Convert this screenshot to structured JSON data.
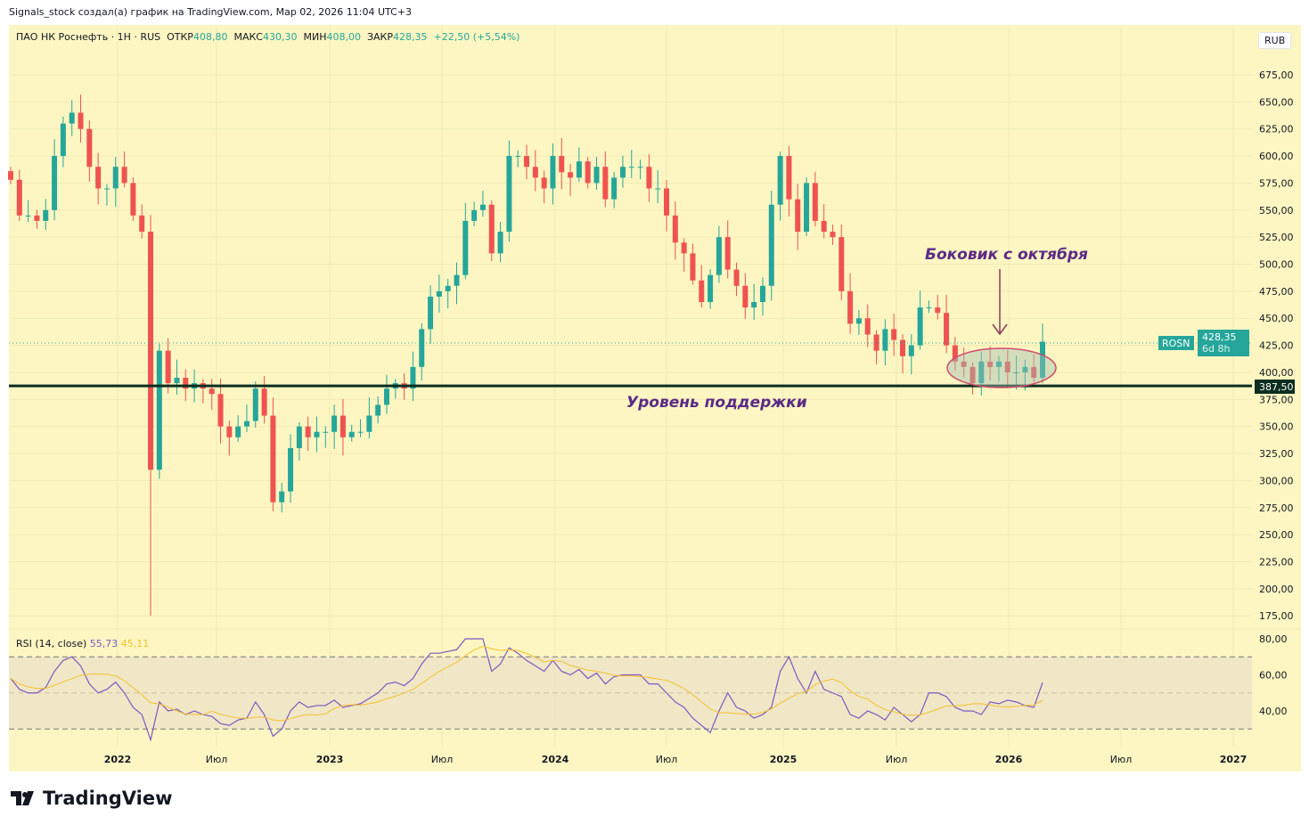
{
  "header": {
    "caption": "Signals_stock создал(а) график на TradingView.com, Мар 02, 2026 11:04 UTC+3"
  },
  "legend": {
    "symbol": "ПАО НК Роснефть · 1H · RUS",
    "open_label": "ОТКР",
    "open": "408,80",
    "high_label": "МАКС",
    "high": "430,30",
    "low_label": "МИН",
    "low": "408,00",
    "close_label": "ЗАКР",
    "close": "428,35",
    "change": "+22,50 (+5,54%)"
  },
  "currency_button": "RUB",
  "price_tag": {
    "ticker": "ROSN",
    "price": "428,35",
    "countdown": "6d 8h"
  },
  "support_tag": "387,50",
  "rsi_legend": {
    "title": "RSI (14, close)",
    "value": "55,73",
    "ma_value": "45,11"
  },
  "annotations": {
    "range_text": "Боковик с октября",
    "support_text": "Уровень поддержки"
  },
  "logo_text": "TradingView",
  "colors": {
    "up": "#26a69a",
    "down": "#ef5350",
    "bg": "#fdf6c2",
    "rsi": "#7e57c2",
    "rsi_ma": "#f5c02a",
    "annotation": "#5b2a86"
  },
  "chart_data": {
    "type": "candlestick",
    "price_ticks": [
      "675,00",
      "650,00",
      "625,00",
      "600,00",
      "575,00",
      "550,00",
      "525,00",
      "500,00",
      "475,00",
      "450,00",
      "425,00",
      "400,00",
      "375,00",
      "350,00",
      "325,00",
      "300,00",
      "275,00",
      "250,00",
      "225,00",
      "200,00",
      "175,00"
    ],
    "price_tick_values": [
      675,
      650,
      625,
      600,
      575,
      550,
      525,
      500,
      475,
      450,
      425,
      400,
      375,
      350,
      325,
      300,
      275,
      250,
      225,
      200,
      175
    ],
    "x_ticks": [
      "2022",
      "Июл",
      "2023",
      "Июл",
      "2024",
      "Июл",
      "2025",
      "Июл",
      "2026",
      "Июл",
      "2027"
    ],
    "support_level": 387.5,
    "last_price": 428.35,
    "extreme_low": {
      "index": 16,
      "value": 175
    },
    "closes": [
      578,
      545,
      545,
      540,
      550,
      600,
      630,
      640,
      625,
      590,
      570,
      570,
      590,
      575,
      545,
      530,
      310,
      420,
      390,
      395,
      385,
      390,
      385,
      380,
      350,
      340,
      350,
      355,
      385,
      360,
      280,
      290,
      330,
      350,
      340,
      345,
      345,
      360,
      340,
      345,
      345,
      360,
      370,
      385,
      390,
      385,
      405,
      440,
      470,
      475,
      480,
      490,
      540,
      550,
      555,
      510,
      530,
      600,
      600,
      590,
      580,
      570,
      600,
      585,
      580,
      595,
      575,
      590,
      560,
      580,
      590,
      590,
      590,
      570,
      570,
      545,
      520,
      510,
      485,
      465,
      490,
      525,
      495,
      480,
      460,
      465,
      480,
      555,
      600,
      560,
      530,
      575,
      540,
      530,
      525,
      475,
      445,
      450,
      435,
      420,
      440,
      430,
      415,
      425,
      460,
      460,
      455,
      425,
      410,
      405,
      390,
      410,
      405,
      410,
      400,
      400,
      405,
      395,
      428.35
    ],
    "rsi_ticks": [
      "80,00",
      "60,00",
      "40,00"
    ],
    "rsi_tick_values": [
      80,
      60,
      40
    ],
    "rsi_bands": [
      70,
      50,
      30
    ],
    "rsi": [
      58,
      52,
      50,
      50,
      53,
      62,
      68,
      70,
      65,
      55,
      50,
      52,
      56,
      50,
      42,
      38,
      24,
      45,
      40,
      41,
      38,
      40,
      38,
      37,
      33,
      32,
      35,
      36,
      45,
      38,
      26,
      30,
      40,
      45,
      42,
      43,
      43,
      46,
      42,
      43,
      44,
      47,
      50,
      55,
      56,
      54,
      58,
      66,
      72,
      72,
      73,
      74,
      80,
      80,
      80,
      62,
      66,
      75,
      72,
      68,
      65,
      62,
      68,
      62,
      60,
      63,
      58,
      61,
      55,
      59,
      60,
      60,
      60,
      55,
      55,
      50,
      45,
      42,
      36,
      32,
      28,
      40,
      50,
      42,
      40,
      36,
      38,
      42,
      62,
      70,
      58,
      50,
      62,
      52,
      50,
      48,
      38,
      36,
      40,
      38,
      35,
      42,
      38,
      34,
      38,
      50,
      50,
      48,
      42,
      40,
      40,
      38,
      45,
      44,
      46,
      45,
      43,
      42,
      55.73
    ]
  }
}
